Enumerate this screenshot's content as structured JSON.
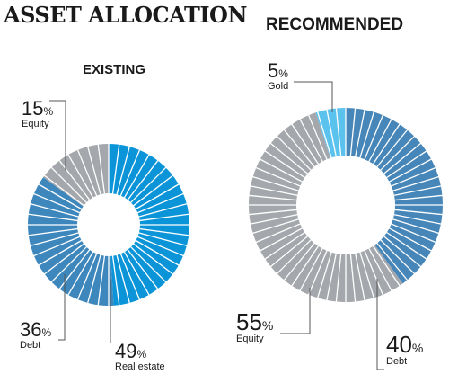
{
  "title": "ASSET ALLOCATION",
  "chart_data": [
    {
      "type": "pie",
      "title": "EXISTING",
      "slices": [
        {
          "label": "Real estate",
          "value": 49,
          "color": "#0b95d8"
        },
        {
          "label": "Debt",
          "value": 36,
          "color": "#3d87bd"
        },
        {
          "label": "Equity",
          "value": 15,
          "color": "#a4a7ab"
        }
      ],
      "unit": "%",
      "start_angle_deg": 0
    },
    {
      "type": "pie",
      "title": "RECOMMENDED",
      "slices": [
        {
          "label": "Debt",
          "value": 40,
          "color": "#4786b8"
        },
        {
          "label": "Equity",
          "value": 55,
          "color": "#a4a7ab"
        },
        {
          "label": "Gold",
          "value": 5,
          "color": "#5bc2ee"
        }
      ],
      "unit": "%",
      "start_angle_deg": 0
    }
  ]
}
